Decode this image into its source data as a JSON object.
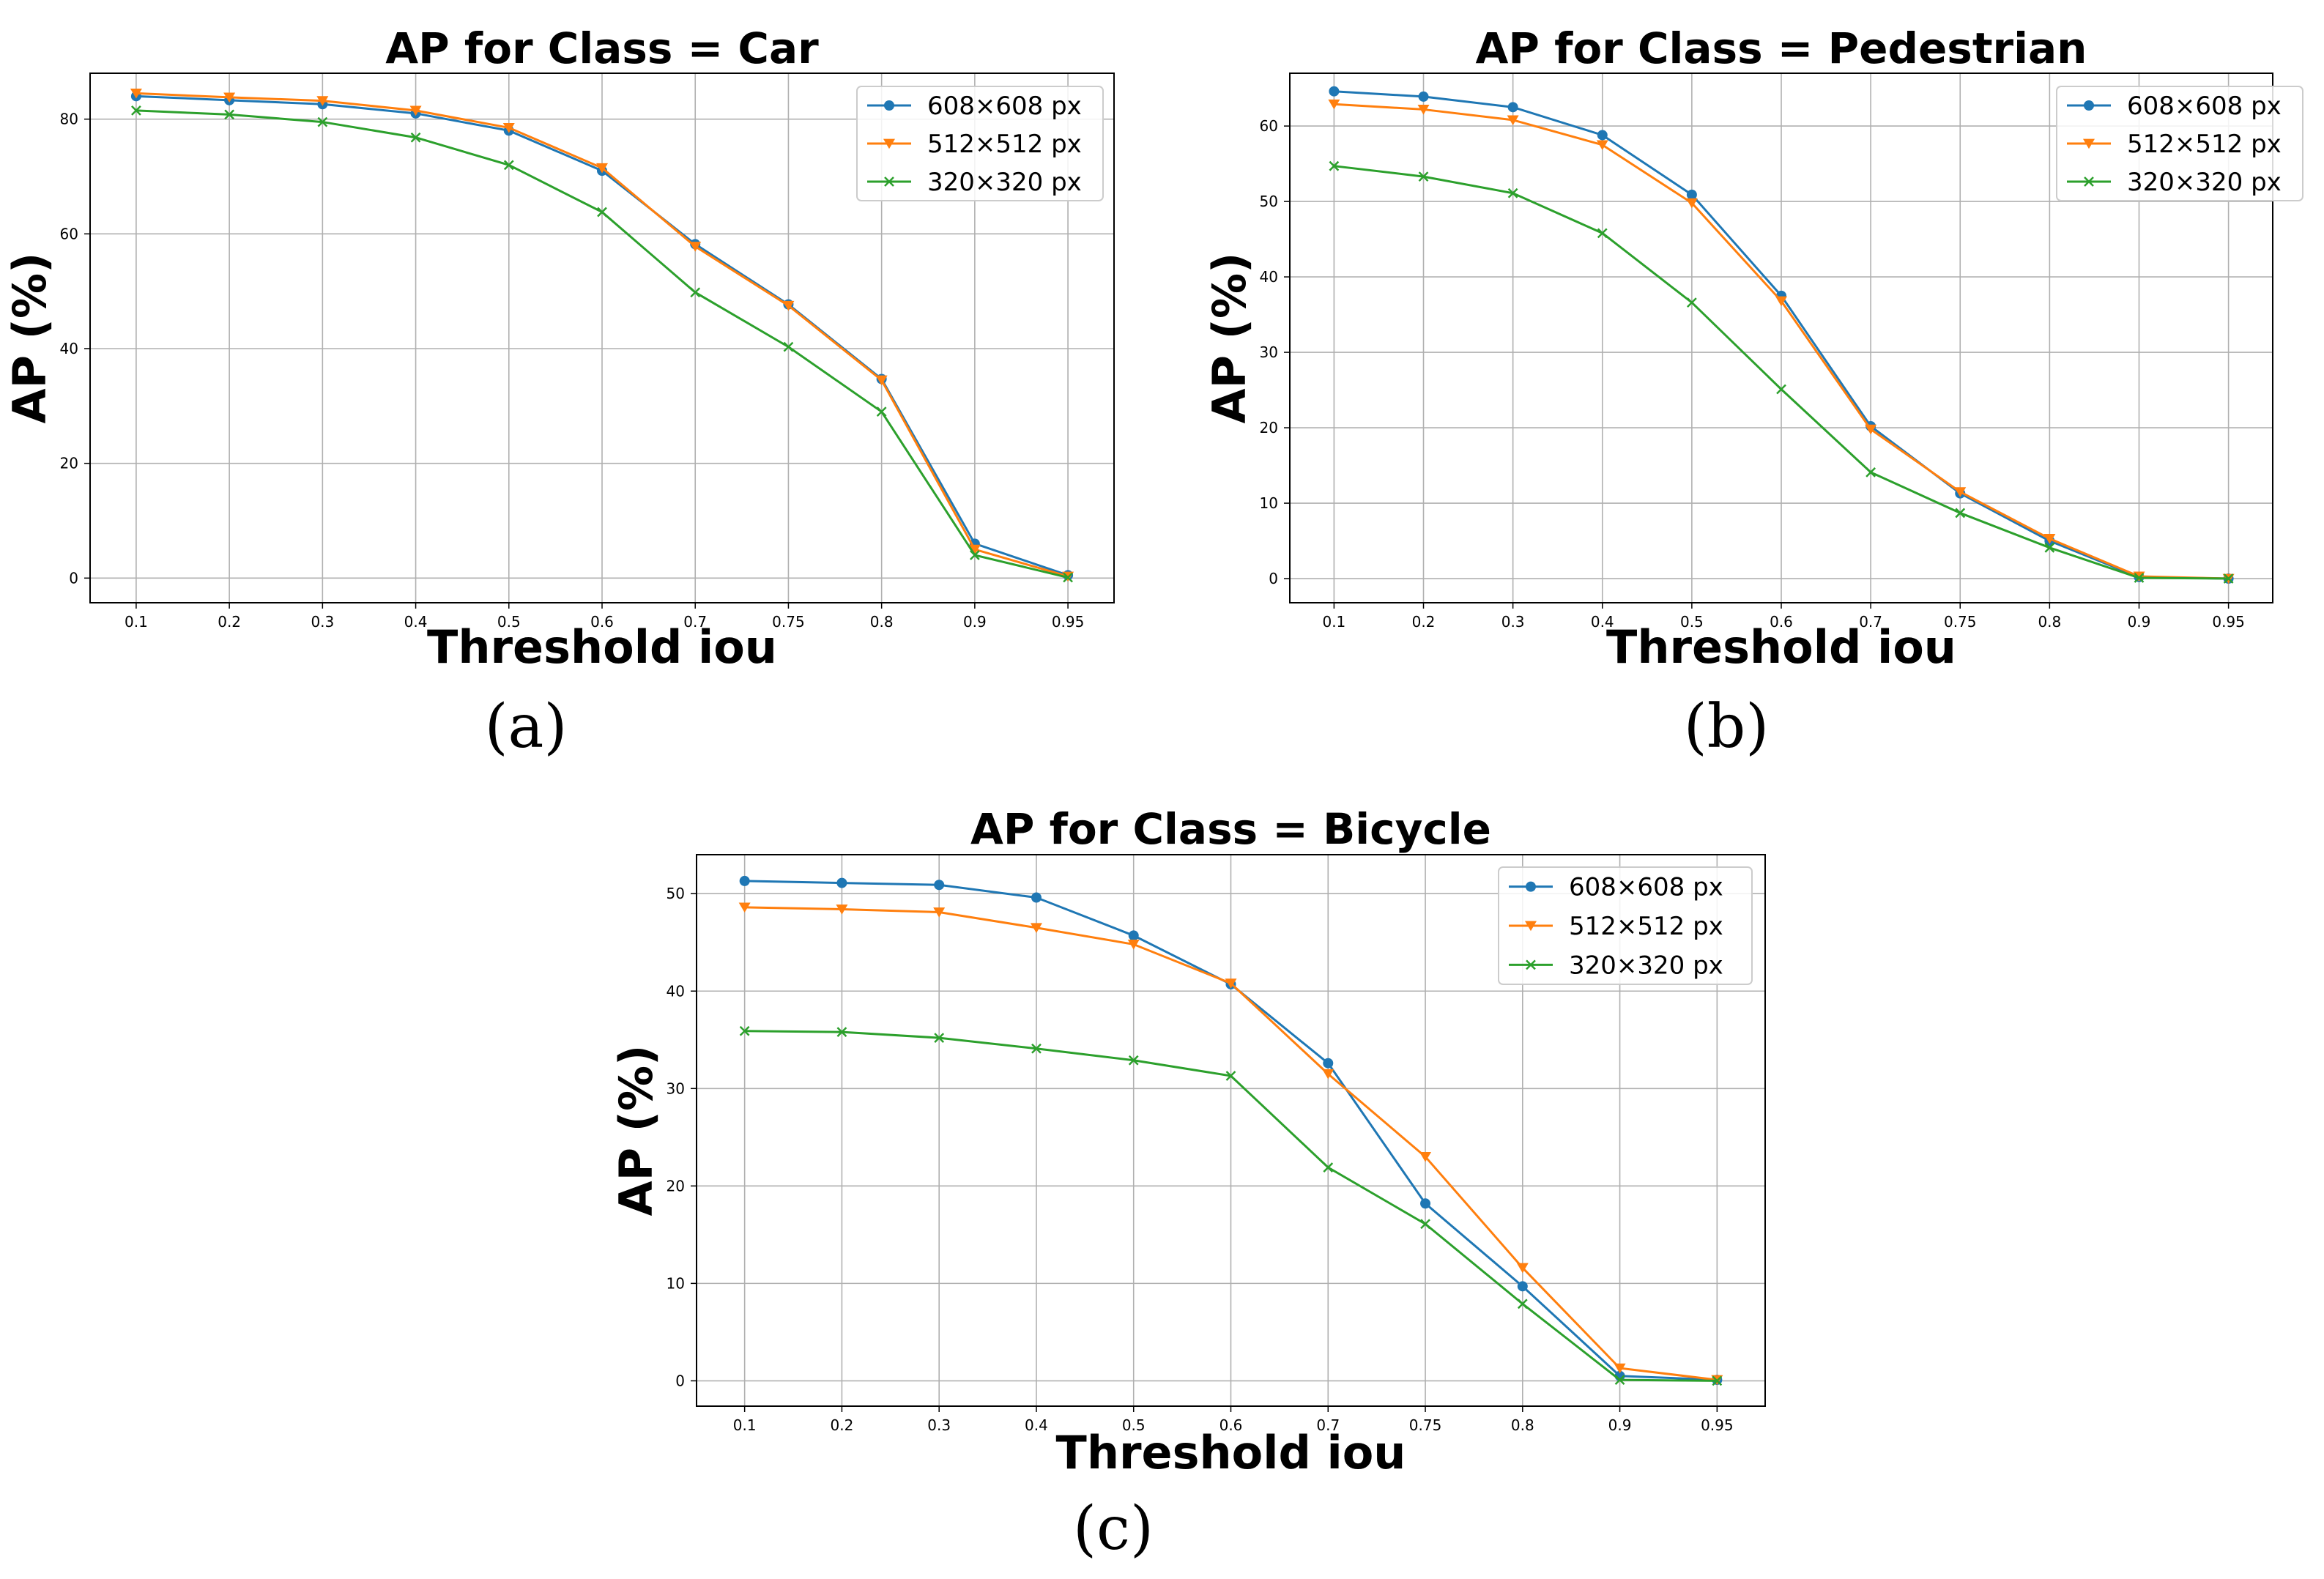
{
  "chart_data": [
    {
      "type": "line",
      "title": "AP for Class = Car",
      "xlabel": "Threshold iou",
      "ylabel": "AP (%)",
      "categories": [
        "0.1",
        "0.2",
        "0.3",
        "0.4",
        "0.5",
        "0.6",
        "0.7",
        "0.75",
        "0.8",
        "0.9",
        "0.95"
      ],
      "yticks": [
        0,
        20,
        40,
        60,
        80
      ],
      "ylim": [
        -4.3,
        88
      ],
      "grid": true,
      "legend": "top-right",
      "caption": "(a)",
      "series": [
        {
          "name": "608×608 px",
          "color": "#1f77b4",
          "marker": "circle",
          "values": [
            84.0,
            83.3,
            82.6,
            81.0,
            78.0,
            71.0,
            58.2,
            47.7,
            34.7,
            6.0,
            0.5
          ]
        },
        {
          "name": "512×512 px",
          "color": "#ff7f0e",
          "marker": "triangle-down",
          "values": [
            84.5,
            83.8,
            83.2,
            81.5,
            78.5,
            71.5,
            57.8,
            47.5,
            34.5,
            5.0,
            0.3
          ]
        },
        {
          "name": "320×320 px",
          "color": "#2ca02c",
          "marker": "x",
          "values": [
            81.5,
            80.8,
            79.5,
            76.8,
            72.0,
            63.8,
            49.8,
            40.3,
            29.0,
            4.0,
            0.1
          ]
        }
      ]
    },
    {
      "type": "line",
      "title": "AP for Class = Pedestrian",
      "xlabel": "Threshold iou",
      "ylabel": "AP (%)",
      "categories": [
        "0.1",
        "0.2",
        "0.3",
        "0.4",
        "0.5",
        "0.6",
        "0.7",
        "0.75",
        "0.8",
        "0.9",
        "0.95"
      ],
      "yticks": [
        0,
        10,
        20,
        30,
        40,
        50,
        60
      ],
      "ylim": [
        -3.2,
        67
      ],
      "grid": true,
      "legend": "top-right",
      "caption": "(b)",
      "series": [
        {
          "name": "608×608 px",
          "color": "#1f77b4",
          "marker": "circle",
          "values": [
            64.6,
            63.9,
            62.5,
            58.8,
            50.9,
            37.5,
            20.2,
            11.3,
            5.0,
            0.2,
            0.0
          ]
        },
        {
          "name": "512×512 px",
          "color": "#ff7f0e",
          "marker": "triangle-down",
          "values": [
            62.9,
            62.2,
            60.8,
            57.5,
            49.8,
            36.8,
            19.8,
            11.5,
            5.3,
            0.3,
            0.0
          ]
        },
        {
          "name": "320×320 px",
          "color": "#2ca02c",
          "marker": "x",
          "values": [
            54.7,
            53.3,
            51.1,
            45.8,
            36.6,
            25.1,
            14.1,
            8.7,
            4.1,
            0.1,
            0.0
          ]
        }
      ]
    },
    {
      "type": "line",
      "title": "AP for Class = Bicycle",
      "xlabel": "Threshold iou",
      "ylabel": "AP (%)",
      "categories": [
        "0.1",
        "0.2",
        "0.3",
        "0.4",
        "0.5",
        "0.6",
        "0.7",
        "0.75",
        "0.8",
        "0.9",
        "0.95"
      ],
      "yticks": [
        0,
        10,
        20,
        30,
        40,
        50
      ],
      "ylim": [
        -2.6,
        54
      ],
      "grid": true,
      "legend": "top-right",
      "caption": "(c)",
      "series": [
        {
          "name": "608×608 px",
          "color": "#1f77b4",
          "marker": "circle",
          "values": [
            51.3,
            51.1,
            50.9,
            49.6,
            45.7,
            40.7,
            32.6,
            18.2,
            9.7,
            0.5,
            0.1
          ]
        },
        {
          "name": "512×512 px",
          "color": "#ff7f0e",
          "marker": "triangle-down",
          "values": [
            48.6,
            48.4,
            48.1,
            46.5,
            44.8,
            40.8,
            31.5,
            23.0,
            11.6,
            1.3,
            0.1
          ]
        },
        {
          "name": "320×320 px",
          "color": "#2ca02c",
          "marker": "x",
          "values": [
            35.9,
            35.8,
            35.2,
            34.1,
            32.9,
            31.3,
            21.9,
            16.1,
            7.9,
            0.1,
            0.0
          ]
        }
      ]
    }
  ]
}
